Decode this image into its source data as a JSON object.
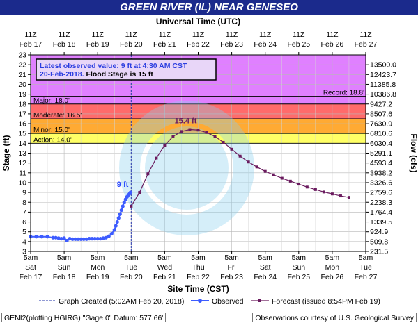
{
  "header": {
    "title": "GREEN RIVER (IL) NEAR GENESEO"
  },
  "chart_data": {
    "type": "line",
    "title": "GREEN RIVER (IL) NEAR GENESEO",
    "top_axis_label": "Universal Time (UTC)",
    "xlabel": "Site Time (CST)",
    "ylabel": "Stage (ft)",
    "y2label": "Flow (cfs)",
    "ylim": [
      3,
      23
    ],
    "y_ticks": [
      3,
      4,
      5,
      6,
      7,
      8,
      9,
      10,
      11,
      12,
      13,
      14,
      15,
      16,
      17,
      18,
      19,
      20,
      21,
      22,
      23
    ],
    "x_unit": "hours since Feb 17 5am CST",
    "xlim": [
      0,
      240
    ],
    "x_ticks_bottom": [
      {
        "time": "5am",
        "day": "Sat",
        "date": "Feb 17"
      },
      {
        "time": "5am",
        "day": "Sun",
        "date": "Feb 18"
      },
      {
        "time": "5am",
        "day": "Mon",
        "date": "Feb 19"
      },
      {
        "time": "5am",
        "day": "Tue",
        "date": "Feb 20"
      },
      {
        "time": "5am",
        "day": "Wed",
        "date": "Feb 21"
      },
      {
        "time": "5am",
        "day": "Thu",
        "date": "Feb 22"
      },
      {
        "time": "5am",
        "day": "Fri",
        "date": "Feb 23"
      },
      {
        "time": "5am",
        "day": "Sat",
        "date": "Feb 24"
      },
      {
        "time": "5am",
        "day": "Sun",
        "date": "Feb 25"
      },
      {
        "time": "5am",
        "day": "Mon",
        "date": "Feb 26"
      },
      {
        "time": "5am",
        "day": "Tue",
        "date": "Feb 27"
      }
    ],
    "x_ticks_top": [
      {
        "time": "11Z",
        "date": "Feb 17"
      },
      {
        "time": "11Z",
        "date": "Feb 18"
      },
      {
        "time": "11Z",
        "date": "Feb 19"
      },
      {
        "time": "11Z",
        "date": "Feb 20"
      },
      {
        "time": "11Z",
        "date": "Feb 21"
      },
      {
        "time": "11Z",
        "date": "Feb 22"
      },
      {
        "time": "11Z",
        "date": "Feb 23"
      },
      {
        "time": "11Z",
        "date": "Feb 24"
      },
      {
        "time": "11Z",
        "date": "Feb 25"
      },
      {
        "time": "11Z",
        "date": "Feb 26"
      },
      {
        "time": "11Z",
        "date": "Feb 27"
      }
    ],
    "flow_ticks": [
      {
        "stage": 22.0,
        "label": "13500.0"
      },
      {
        "stage": 21.0,
        "label": "12423.7"
      },
      {
        "stage": 20.0,
        "label": "11385.8"
      },
      {
        "stage": 19.0,
        "label": "10386.8"
      },
      {
        "stage": 18.0,
        "label": "9427.2"
      },
      {
        "stage": 17.0,
        "label": "8507.6"
      },
      {
        "stage": 16.0,
        "label": "7630.9"
      },
      {
        "stage": 15.0,
        "label": "6810.6"
      },
      {
        "stage": 14.0,
        "label": "6030.4"
      },
      {
        "stage": 13.0,
        "label": "5291.1"
      },
      {
        "stage": 12.0,
        "label": "4593.4"
      },
      {
        "stage": 11.0,
        "label": "3938.2"
      },
      {
        "stage": 10.0,
        "label": "3326.6"
      },
      {
        "stage": 9.0,
        "label": "2759.6"
      },
      {
        "stage": 8.0,
        "label": "2238.3"
      },
      {
        "stage": 7.0,
        "label": "1764.4"
      },
      {
        "stage": 6.0,
        "label": "1339.5"
      },
      {
        "stage": 5.0,
        "label": "924.9"
      },
      {
        "stage": 4.0,
        "label": "509.8"
      },
      {
        "stage": 3.0,
        "label": "231.5"
      }
    ],
    "flood_categories": [
      {
        "name": "Major",
        "label": "Major: 18.0'",
        "from": 18,
        "to": 23,
        "color": "#e080ff"
      },
      {
        "name": "Moderate",
        "label": "Moderate: 16.5'",
        "from": 16.5,
        "to": 18,
        "color": "#ff6b6b"
      },
      {
        "name": "Minor",
        "label": "Minor: 15.0'",
        "from": 15,
        "to": 16.5,
        "color": "#ffaa33"
      },
      {
        "name": "Action",
        "label": "Action: 14.0'",
        "from": 14,
        "to": 15,
        "color": "#ffff66"
      }
    ],
    "record": {
      "label": "Record: 18.8'",
      "value": 18.8
    },
    "graph_created_x": 72,
    "info_box": {
      "line1": "Latest observed value: 9 ft at 4:30 AM CST",
      "line2_date": "20-Feb-2018.",
      "line2_rest": "Flood Stage is 15 ft"
    },
    "annotations": {
      "observed_latest": {
        "label": "9 ft",
        "x": 71.5,
        "y": 9.0
      },
      "forecast_crest": {
        "label": "15.4 ft",
        "x": 111,
        "y": 15.4
      }
    },
    "series": [
      {
        "name": "Observed",
        "color": "#3d5cff",
        "x": [
          0,
          4,
          8,
          12,
          16,
          18,
          20,
          22,
          24,
          26,
          28,
          30,
          32,
          34,
          36,
          38,
          40,
          42,
          44,
          46,
          48,
          50,
          52,
          54,
          56,
          58,
          60,
          61,
          62,
          63,
          64,
          65,
          66,
          67,
          68,
          69,
          70,
          71,
          71.5
        ],
        "y": [
          4.5,
          4.5,
          4.5,
          4.5,
          4.4,
          4.4,
          4.35,
          4.3,
          4.35,
          4.1,
          4.3,
          4.25,
          4.25,
          4.25,
          4.25,
          4.25,
          4.25,
          4.3,
          4.3,
          4.3,
          4.3,
          4.3,
          4.35,
          4.4,
          4.55,
          4.8,
          5.2,
          5.6,
          6.0,
          6.4,
          6.8,
          7.2,
          7.6,
          8.0,
          8.3,
          8.55,
          8.75,
          8.9,
          9.0
        ]
      },
      {
        "name": "Forecast (issued 8:54PM Feb 19)",
        "color": "#6a1a5e",
        "x": [
          72,
          78,
          84,
          90,
          96,
          102,
          108,
          114,
          120,
          126,
          132,
          138,
          144,
          150,
          156,
          162,
          168,
          174,
          180,
          186,
          192,
          198,
          204,
          210,
          216,
          222,
          228
        ],
        "y": [
          7.6,
          9.0,
          10.9,
          12.5,
          13.8,
          14.7,
          15.2,
          15.4,
          15.35,
          15.1,
          14.7,
          14.1,
          13.4,
          12.7,
          12.1,
          11.6,
          11.15,
          10.8,
          10.45,
          10.15,
          9.85,
          9.55,
          9.3,
          9.05,
          8.85,
          8.65,
          8.5
        ]
      }
    ]
  },
  "legend": {
    "graph_created": "Graph Created (5:02AM Feb 20, 2018)",
    "observed": "Observed",
    "forecast": "Forecast (issued 8:54PM Feb 19)"
  },
  "footer": {
    "left": "GENI2(plotting HGIRG) \"Gage 0\" Datum:  577.66'",
    "right": "Observations courtesy of U.S. Geological Survey"
  }
}
